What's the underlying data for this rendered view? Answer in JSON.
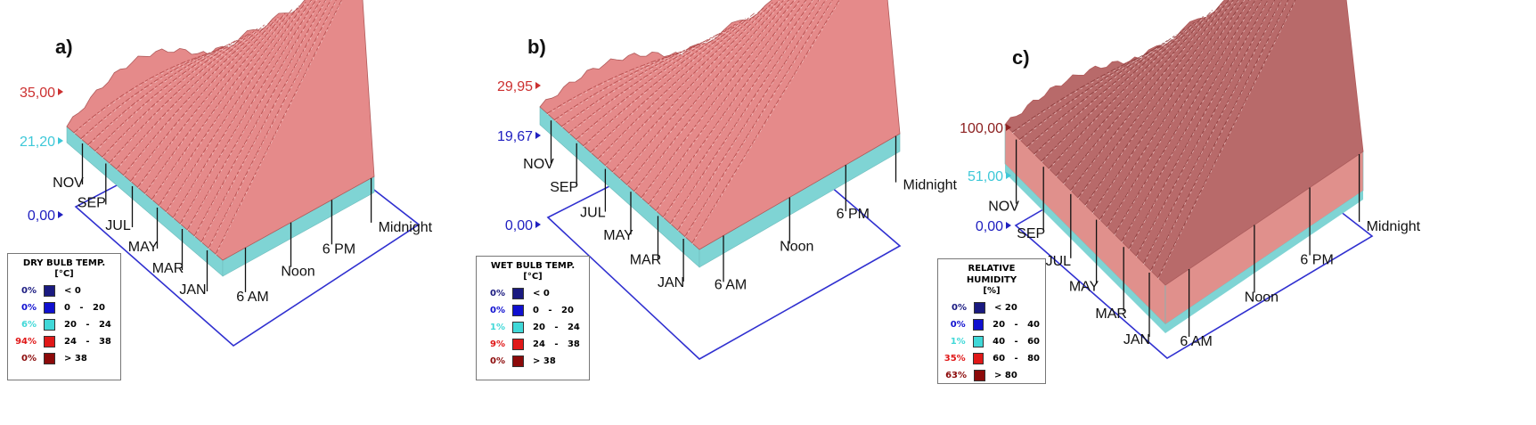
{
  "chart_data": [
    {
      "type": "area",
      "panel_label": "a)",
      "title": "DRY BULB TEMP.",
      "unit": "[°C]",
      "z_values": {
        "max": "35,00",
        "mid": "21,20",
        "min": "0,00"
      },
      "x_axis_labels": [
        "JAN",
        "MAR",
        "MAY",
        "JUL",
        "SEP",
        "NOV"
      ],
      "y_axis_labels": [
        "6 AM",
        "Noon",
        "6 PM",
        "Midnight"
      ],
      "legend": [
        {
          "pct": "0%",
          "range": "< 0",
          "color": "#1a1a80"
        },
        {
          "pct": "0%",
          "range": "0   -   20",
          "color": "#1010d0"
        },
        {
          "pct": "6%",
          "range": "20   -   24",
          "color": "#40d8d8"
        },
        {
          "pct": "94%",
          "range": "24   -   38",
          "color": "#e01818"
        },
        {
          "pct": "0%",
          "range": "> 38",
          "color": "#8c0a0a"
        }
      ]
    },
    {
      "type": "area",
      "panel_label": "b)",
      "title": "WET BULB TEMP.",
      "unit": "[°C]",
      "z_values": {
        "max": "29,95",
        "mid": "19,67",
        "min": "0,00"
      },
      "x_axis_labels": [
        "JAN",
        "MAR",
        "MAY",
        "JUL",
        "SEP",
        "NOV"
      ],
      "y_axis_labels": [
        "6 AM",
        "Noon",
        "6 PM",
        "Midnight"
      ],
      "legend": [
        {
          "pct": "0%",
          "range": "< 0",
          "color": "#1a1a80"
        },
        {
          "pct": "0%",
          "range": "0   -   20",
          "color": "#1010d0"
        },
        {
          "pct": "1%",
          "range": "20   -   24",
          "color": "#40d8d8"
        },
        {
          "pct": "9%",
          "range": "24   -   38",
          "color": "#e01818"
        },
        {
          "pct": "0%",
          "range": "> 38",
          "color": "#8c0a0a"
        }
      ]
    },
    {
      "type": "area",
      "panel_label": "c)",
      "title": "RELATIVE HUMIDITY",
      "unit": "[%]",
      "z_values": {
        "max": "100,00",
        "mid": "51,00",
        "min": "0,00"
      },
      "x_axis_labels": [
        "JAN",
        "MAR",
        "MAY",
        "JUL",
        "SEP",
        "NOV"
      ],
      "y_axis_labels": [
        "6 AM",
        "Noon",
        "6 PM",
        "Midnight"
      ],
      "legend": [
        {
          "pct": "0%",
          "range": "< 20",
          "color": "#1a1a80"
        },
        {
          "pct": "0%",
          "range": "20   -   40",
          "color": "#1010d0"
        },
        {
          "pct": "1%",
          "range": "40   -   60",
          "color": "#40d8d8"
        },
        {
          "pct": "35%",
          "range": "60   -   80",
          "color": "#e01818"
        },
        {
          "pct": "63%",
          "range": "> 80",
          "color": "#8c0a0a"
        }
      ]
    }
  ],
  "colors": {
    "surface_red": "#e58a8a",
    "surface_dark": "#b05a5a",
    "side_cyan": "#7fd4d4",
    "axis_blue": "#3030d0"
  }
}
